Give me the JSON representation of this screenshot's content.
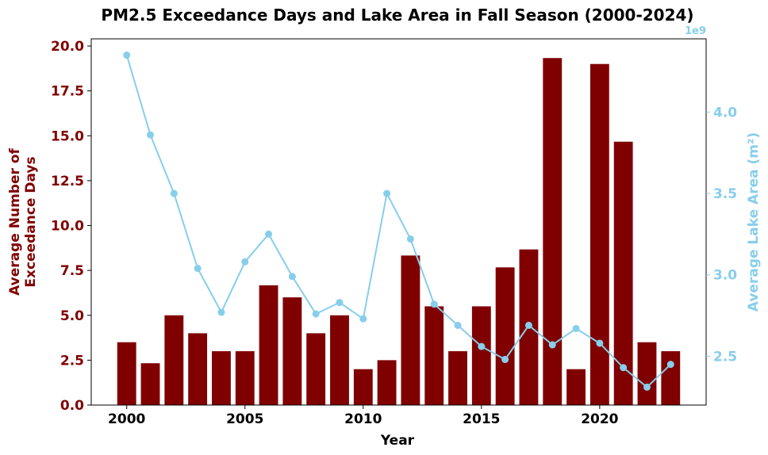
{
  "chart_data": {
    "type": "bar",
    "title": "PM2.5 Exceedance Days and Lake Area in Fall Season (2000-2024)",
    "xlabel": "Year",
    "x_ticks": [
      "2000",
      "2005",
      "2010",
      "2015",
      "2020"
    ],
    "xlim": [
      1998.5,
      2024.5
    ],
    "categories": [
      2000,
      2001,
      2002,
      2003,
      2004,
      2005,
      2006,
      2007,
      2008,
      2009,
      2010,
      2011,
      2012,
      2013,
      2014,
      2015,
      2016,
      2017,
      2018,
      2019,
      2020,
      2021,
      2022,
      2023
    ],
    "left_axis": {
      "label_lines": [
        "Average Number of",
        "Exceedance Days"
      ],
      "color": "#800000",
      "ylim": [
        0,
        20.4
      ],
      "ticks": [
        "0.0",
        "2.5",
        "5.0",
        "7.5",
        "10.0",
        "12.5",
        "15.0",
        "17.5",
        "20.0"
      ]
    },
    "right_axis": {
      "label": "Average Lake Area (m²)",
      "color": "#87ceeb",
      "offset_text": "1e9",
      "ylim": [
        2.2,
        4.45
      ],
      "ticks": [
        "2.5",
        "3.0",
        "3.5",
        "4.0"
      ]
    },
    "series": [
      {
        "type": "bar",
        "axis": "left",
        "color": "#800000",
        "values": [
          3.5,
          2.33,
          5.0,
          4.0,
          3.0,
          3.0,
          6.67,
          6.0,
          4.0,
          5.0,
          2.0,
          2.5,
          8.33,
          5.5,
          3.0,
          5.5,
          7.67,
          8.67,
          19.33,
          2.0,
          19.0,
          14.67,
          3.5,
          3.0
        ]
      },
      {
        "type": "line",
        "axis": "right",
        "color": "#87ceeb",
        "values": [
          4.35,
          3.86,
          3.5,
          3.04,
          2.77,
          3.08,
          3.25,
          2.99,
          2.76,
          2.83,
          2.73,
          3.5,
          3.22,
          2.82,
          2.69,
          2.56,
          2.48,
          2.69,
          2.57,
          2.67,
          2.58,
          2.43,
          2.31,
          2.45
        ]
      }
    ],
    "grid": false
  }
}
